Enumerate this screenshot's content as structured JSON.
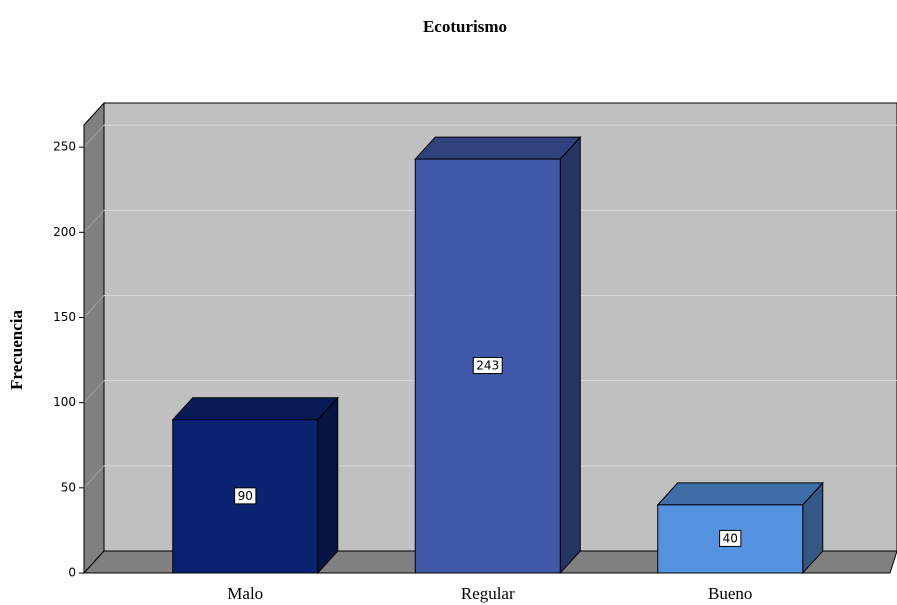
{
  "chart_data": {
    "type": "bar3d",
    "title": "Ecoturismo",
    "y_label": "Frecuencia",
    "categories": [
      "Malo",
      "Regular",
      "Bueno"
    ],
    "values": [
      90,
      243,
      40
    ],
    "colors": [
      "#0b2270",
      "#3f58a8",
      "#5592e0"
    ],
    "ylim": [
      0,
      263
    ],
    "yticks": [
      0,
      50,
      100,
      150,
      200,
      250
    ],
    "grid": true
  }
}
